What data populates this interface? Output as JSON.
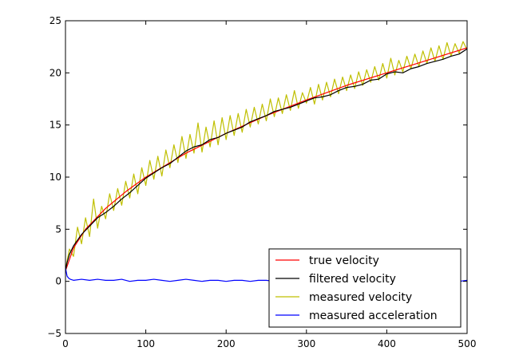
{
  "chart_data": {
    "type": "line",
    "title": "",
    "xlabel": "",
    "ylabel": "",
    "xlim": [
      0,
      500
    ],
    "ylim": [
      -5,
      25
    ],
    "x_ticks": [
      0,
      100,
      200,
      300,
      400,
      500
    ],
    "y_ticks": [
      -5,
      0,
      5,
      10,
      15,
      20,
      25
    ],
    "x_tick_labels": [
      "0",
      "100",
      "200",
      "300",
      "400",
      "500"
    ],
    "y_tick_labels": [
      "−5",
      "0",
      "5",
      "10",
      "15",
      "20",
      "25"
    ],
    "grid": false,
    "legend_position": "lower-right",
    "series": [
      {
        "name": "true velocity",
        "color": "#ff0000",
        "x": [
          0,
          10,
          25,
          50,
          75,
          100,
          150,
          200,
          250,
          300,
          350,
          400,
          450,
          500
        ],
        "values": [
          1.0,
          3.2,
          5.0,
          7.0,
          8.6,
          10.0,
          12.3,
          14.2,
          15.9,
          17.4,
          18.8,
          20.0,
          21.2,
          22.4
        ]
      },
      {
        "name": "filtered velocity",
        "color": "#000000",
        "x": [
          0,
          2,
          5,
          10,
          20,
          30,
          40,
          50,
          60,
          70,
          80,
          90,
          100,
          110,
          120,
          130,
          140,
          150,
          160,
          170,
          180,
          190,
          200,
          210,
          220,
          230,
          240,
          250,
          260,
          270,
          280,
          290,
          300,
          310,
          320,
          330,
          340,
          350,
          360,
          370,
          380,
          390,
          400,
          410,
          420,
          430,
          440,
          450,
          460,
          470,
          480,
          490,
          500
        ],
        "values": [
          1.0,
          1.8,
          2.6,
          3.4,
          4.5,
          5.3,
          6.1,
          6.6,
          7.2,
          7.9,
          8.5,
          9.2,
          9.9,
          10.4,
          10.9,
          11.3,
          11.9,
          12.5,
          12.9,
          13.1,
          13.6,
          13.8,
          14.2,
          14.5,
          14.8,
          15.3,
          15.6,
          15.9,
          16.3,
          16.5,
          16.7,
          17.0,
          17.3,
          17.6,
          17.7,
          17.9,
          18.3,
          18.6,
          18.7,
          18.9,
          19.3,
          19.4,
          19.9,
          20.1,
          20.0,
          20.4,
          20.6,
          20.9,
          21.1,
          21.3,
          21.6,
          21.8,
          22.3
        ]
      },
      {
        "name": "measured velocity",
        "color": "#bfbf00",
        "x": [
          0,
          5,
          10,
          15,
          20,
          25,
          30,
          35,
          40,
          45,
          50,
          55,
          60,
          65,
          70,
          75,
          80,
          85,
          90,
          95,
          100,
          105,
          110,
          115,
          120,
          125,
          130,
          135,
          140,
          145,
          150,
          155,
          160,
          165,
          170,
          175,
          180,
          185,
          190,
          195,
          200,
          205,
          210,
          215,
          220,
          225,
          230,
          235,
          240,
          245,
          250,
          255,
          260,
          265,
          270,
          275,
          280,
          285,
          290,
          295,
          300,
          305,
          310,
          315,
          320,
          325,
          330,
          335,
          340,
          345,
          350,
          355,
          360,
          365,
          370,
          375,
          380,
          385,
          390,
          395,
          400,
          405,
          410,
          415,
          420,
          425,
          430,
          435,
          440,
          445,
          450,
          455,
          460,
          465,
          470,
          475,
          480,
          485,
          490,
          495,
          500
        ],
        "values": [
          1.2,
          3.1,
          2.4,
          5.2,
          3.6,
          6.1,
          4.3,
          7.9,
          5.1,
          7.2,
          6.0,
          8.4,
          6.8,
          8.9,
          7.3,
          9.6,
          8.0,
          10.3,
          8.4,
          10.9,
          9.2,
          11.6,
          9.8,
          12.0,
          10.1,
          12.6,
          10.9,
          13.1,
          11.4,
          13.9,
          11.8,
          14.1,
          12.3,
          15.2,
          12.4,
          14.8,
          12.9,
          15.4,
          13.1,
          15.7,
          13.6,
          15.9,
          14.0,
          16.1,
          14.3,
          16.5,
          14.8,
          16.7,
          15.1,
          17.0,
          15.4,
          17.5,
          15.8,
          17.6,
          16.1,
          17.9,
          16.4,
          18.3,
          16.6,
          18.1,
          17.1,
          18.6,
          17.0,
          18.9,
          17.4,
          19.1,
          17.7,
          19.4,
          18.0,
          19.6,
          18.3,
          19.8,
          18.5,
          20.1,
          18.8,
          20.3,
          19.1,
          20.6,
          19.3,
          20.9,
          19.5,
          21.4,
          19.8,
          21.2,
          20.1,
          21.6,
          20.4,
          21.8,
          20.6,
          22.1,
          20.9,
          22.4,
          21.1,
          22.6,
          21.3,
          22.9,
          21.6,
          22.8,
          21.9,
          23.0,
          22.2
        ]
      },
      {
        "name": "measured acceleration",
        "color": "#0000ff",
        "x": [
          0,
          2,
          4,
          6,
          10,
          20,
          30,
          40,
          50,
          60,
          70,
          80,
          90,
          100,
          110,
          120,
          130,
          140,
          150,
          160,
          170,
          180,
          190,
          200,
          210,
          220,
          230,
          240,
          250,
          260,
          270,
          280,
          290,
          300,
          310,
          320,
          330,
          340,
          350,
          360,
          370,
          380,
          390,
          400,
          410,
          420,
          430,
          440,
          450,
          460,
          470,
          480,
          490,
          500
        ],
        "values": [
          1.3,
          0.5,
          0.3,
          0.2,
          0.1,
          0.2,
          0.1,
          0.2,
          0.1,
          0.1,
          0.2,
          0.0,
          0.1,
          0.1,
          0.2,
          0.1,
          0.0,
          0.1,
          0.2,
          0.1,
          0.0,
          0.1,
          0.1,
          0.0,
          0.1,
          0.1,
          0.0,
          0.1,
          0.1,
          0.0,
          0.1,
          0.0,
          0.1,
          0.0,
          0.1,
          0.0,
          0.1,
          0.0,
          0.0,
          0.1,
          0.0,
          0.1,
          0.0,
          0.1,
          0.0,
          0.0,
          0.1,
          0.0,
          0.1,
          0.0,
          0.0,
          0.1,
          0.0,
          0.1
        ]
      }
    ]
  }
}
